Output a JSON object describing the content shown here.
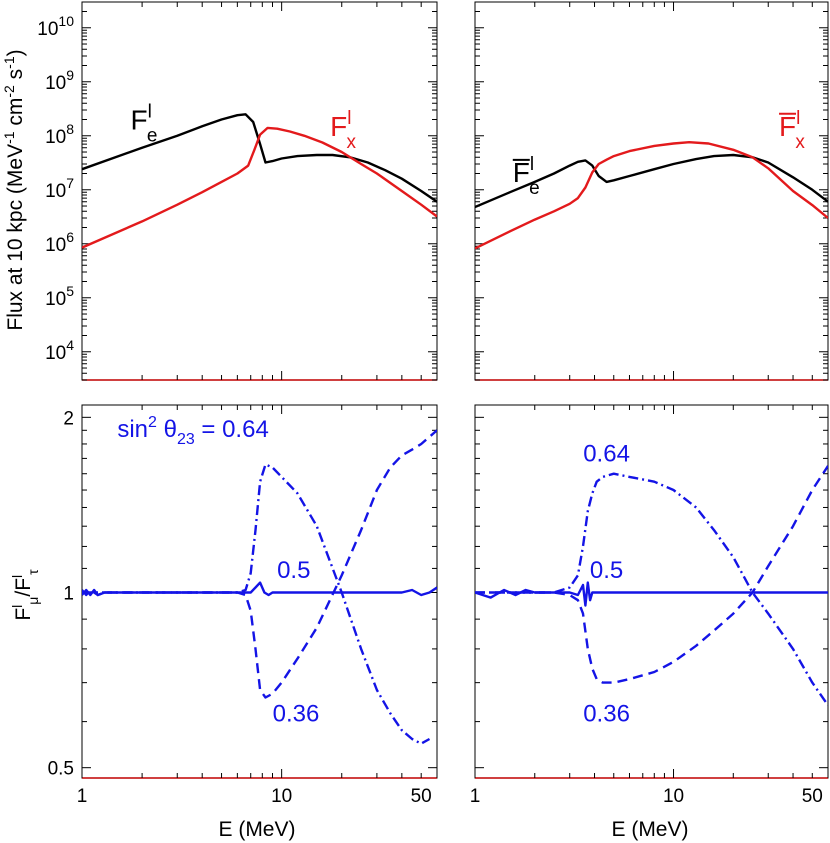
{
  "colors": {
    "black_curve": "#000000",
    "red_curve": "#e31a1c",
    "blue_curve": "#1414e6",
    "panel_bottom_edge": "#c00000"
  },
  "axis_text": {
    "x_label": "E (MeV)",
    "y_label_top": "Flux at 10 kpc (MeV",
    "y_label_top_sup1": "-1",
    "y_label_top_mid": " cm",
    "y_label_top_sup2": "-2",
    "y_label_top_mid2": " s",
    "y_label_top_sup3": "-1",
    "y_label_top_end": ")",
    "y_label_bottom_main1": "F",
    "y_label_bottom_sup1": "l",
    "y_label_bottom_sub1": "μ",
    "y_label_bottom_main2": "/F",
    "y_label_bottom_sup2": "l",
    "y_label_bottom_sub2": "τ"
  },
  "chart_data": [
    {
      "panel": "top-left",
      "type": "line",
      "log_x": true,
      "log_y": true,
      "xlim": [
        1,
        60
      ],
      "ylim": [
        3000,
        30000000000
      ],
      "x_ticks": [
        {
          "v": 1,
          "label": "1"
        },
        {
          "v": 10,
          "label": "10"
        },
        {
          "v": 50,
          "label": "50"
        }
      ],
      "y_ticks": [
        {
          "v": 10000,
          "base": "10",
          "exp": "4"
        },
        {
          "v": 100000,
          "base": "10",
          "exp": "5"
        },
        {
          "v": 1000000,
          "base": "10",
          "exp": "6"
        },
        {
          "v": 10000000,
          "base": "10",
          "exp": "7"
        },
        {
          "v": 100000000,
          "base": "10",
          "exp": "8"
        },
        {
          "v": 1000000000,
          "base": "10",
          "exp": "9"
        },
        {
          "v": 10000000000,
          "base": "10",
          "exp": "10"
        }
      ],
      "series": [
        {
          "color_key": "black_curve",
          "dash": "solid",
          "x": [
            1,
            2,
            3,
            4,
            5,
            6,
            6.6,
            7.2,
            7.8,
            8.3,
            9,
            10,
            12,
            15,
            18,
            22,
            27,
            33,
            40,
            50,
            60
          ],
          "y": [
            24000000,
            60000000,
            100000000,
            150000000,
            200000000,
            240000000,
            250000000,
            180000000,
            70000000,
            32000000,
            34000000,
            38000000,
            42000000,
            44000000,
            44000000,
            40000000,
            32000000,
            23000000,
            16000000,
            9500000,
            6000000
          ]
        },
        {
          "color_key": "red_curve",
          "dash": "solid",
          "x": [
            1,
            2,
            3,
            4,
            5,
            6,
            6.8,
            7.3,
            7.8,
            8.5,
            9.5,
            11,
            13,
            16,
            20,
            25,
            30,
            40,
            50,
            60
          ],
          "y": [
            850000,
            2600000,
            5300000,
            9000000,
            14000000,
            20000000,
            28000000,
            55000000,
            105000000,
            140000000,
            135000000,
            120000000,
            100000000,
            75000000,
            50000000,
            30000000,
            20000000,
            9500000,
            5300000,
            3200000
          ]
        }
      ],
      "annotations": [
        {
          "main": "F",
          "sup": "l",
          "sub": "e",
          "bar": false,
          "color_key": "black_curve",
          "ax": 1.75,
          "ay": 130000000
        },
        {
          "main": "F",
          "sup": "l",
          "sub": "x",
          "bar": false,
          "color_key": "red_curve",
          "ax": 17.5,
          "ay": 100000000
        }
      ]
    },
    {
      "panel": "top-right",
      "type": "line",
      "log_x": true,
      "log_y": true,
      "xlim": [
        1,
        60
      ],
      "ylim": [
        3000,
        30000000000
      ],
      "x_ticks": [
        {
          "v": 1,
          "label": "1"
        },
        {
          "v": 10,
          "label": "10"
        },
        {
          "v": 50,
          "label": "50"
        }
      ],
      "y_ticks": [
        {
          "v": 10000
        },
        {
          "v": 100000
        },
        {
          "v": 1000000
        },
        {
          "v": 10000000
        },
        {
          "v": 100000000
        },
        {
          "v": 1000000000
        },
        {
          "v": 10000000000
        }
      ],
      "series": [
        {
          "color_key": "black_curve",
          "dash": "solid",
          "x": [
            1,
            1.5,
            2,
            2.5,
            3,
            3.3,
            3.6,
            3.9,
            4.2,
            4.6,
            5,
            6,
            8,
            10,
            13,
            16,
            20,
            25,
            30,
            40,
            50,
            60
          ],
          "y": [
            4800000,
            9000000,
            14000000,
            20000000,
            28000000,
            33000000,
            35000000,
            28000000,
            18000000,
            14000000,
            15000000,
            18000000,
            24000000,
            30000000,
            37000000,
            42000000,
            44000000,
            40000000,
            32000000,
            17000000,
            10000000,
            6000000
          ]
        },
        {
          "color_key": "red_curve",
          "dash": "solid",
          "x": [
            1,
            1.5,
            2,
            2.5,
            3,
            3.3,
            3.6,
            3.9,
            4.2,
            4.6,
            5,
            6,
            8,
            10,
            12,
            15,
            20,
            25,
            30,
            40,
            50,
            60
          ],
          "y": [
            820000,
            1700000,
            2800000,
            4000000,
            5500000,
            7000000,
            11000000,
            21000000,
            30000000,
            36000000,
            42000000,
            52000000,
            65000000,
            72000000,
            76000000,
            72000000,
            55000000,
            40000000,
            25000000,
            9500000,
            5200000,
            3000000
          ]
        }
      ],
      "annotations": [
        {
          "main": "F",
          "sup": "l",
          "sub": "e",
          "bar": true,
          "color_key": "black_curve",
          "ax": 1.55,
          "ay": 14000000
        },
        {
          "main": "F",
          "sup": "l",
          "sub": "x",
          "bar": true,
          "color_key": "red_curve",
          "ax": 34,
          "ay": 100000000
        }
      ]
    },
    {
      "panel": "bottom-left",
      "type": "line",
      "log_x": true,
      "log_y": true,
      "xlim": [
        1,
        60
      ],
      "ylim": [
        0.48,
        2.1
      ],
      "x_ticks": [
        {
          "v": 1,
          "label": "1"
        },
        {
          "v": 10,
          "label": "10"
        },
        {
          "v": 50,
          "label": "50"
        }
      ],
      "y_ticks": [
        {
          "v": 0.5,
          "label": "0.5"
        },
        {
          "v": 1,
          "label": "1"
        },
        {
          "v": 2,
          "label": "2"
        }
      ],
      "series": [
        {
          "color_key": "blue_curve",
          "dash": "solid",
          "x": [
            1,
            1.05,
            1.1,
            1.15,
            1.2,
            1.3,
            1.5,
            2,
            3,
            4,
            5,
            6,
            7,
            7.4,
            7.8,
            8.2,
            8.6,
            9,
            10,
            12,
            15,
            18,
            20,
            25,
            30,
            35,
            40,
            45,
            50,
            55,
            60
          ],
          "y": [
            0.99,
            1.01,
            0.99,
            1.01,
            0.99,
            1.0,
            1.0,
            1.0,
            1.0,
            1.0,
            1.0,
            1.0,
            1.0,
            1.02,
            1.04,
            1.0,
            0.99,
            1.0,
            1.0,
            1.0,
            1.0,
            1.0,
            1.0,
            1.0,
            1.0,
            1.0,
            1.0,
            1.01,
            0.99,
            1.0,
            1.02
          ]
        },
        {
          "color_key": "blue_curve",
          "dash": "dashed",
          "x": [
            1,
            1.05,
            1.1,
            1.2,
            1.3,
            1.5,
            2,
            3,
            4,
            5,
            6,
            6.6,
            7,
            7.4,
            7.8,
            8.3,
            9,
            10,
            12,
            15,
            20,
            25,
            30,
            35,
            40,
            45,
            50,
            60
          ],
          "y": [
            1.01,
            0.99,
            1.01,
            0.99,
            1.0,
            1.0,
            1.0,
            1.0,
            1.0,
            1.0,
            1.0,
            0.99,
            0.93,
            0.8,
            0.68,
            0.66,
            0.67,
            0.7,
            0.77,
            0.87,
            1.07,
            1.28,
            1.5,
            1.64,
            1.72,
            1.76,
            1.8,
            1.9
          ]
        },
        {
          "color_key": "blue_curve",
          "dash": "dashdot",
          "x": [
            1,
            2,
            3,
            4,
            5,
            6,
            6.6,
            7,
            7.4,
            7.8,
            8.3,
            9,
            10,
            12,
            15,
            20,
            25,
            30,
            35,
            40,
            45,
            50,
            55
          ],
          "y": [
            1.0,
            1.0,
            1.0,
            1.0,
            1.0,
            1.0,
            1.01,
            1.08,
            1.28,
            1.55,
            1.66,
            1.64,
            1.58,
            1.48,
            1.3,
            1.0,
            0.8,
            0.68,
            0.62,
            0.58,
            0.56,
            0.55,
            0.56
          ]
        }
      ],
      "annotations": [
        {
          "text": "0.5",
          "ax": 11.5,
          "ay": 1.06
        },
        {
          "text": "0.36",
          "ax": 11.8,
          "ay": 0.6
        }
      ],
      "label_sin": {
        "pre": "sin",
        "sup": "2",
        "theta": " θ",
        "sub": "23",
        "post": " = 0.64",
        "ax": 3.6,
        "ay": 1.85
      }
    },
    {
      "panel": "bottom-right",
      "type": "line",
      "log_x": true,
      "log_y": true,
      "xlim": [
        1,
        60
      ],
      "ylim": [
        0.48,
        2.1
      ],
      "x_ticks": [
        {
          "v": 1,
          "label": "1"
        },
        {
          "v": 10,
          "label": "10"
        },
        {
          "v": 50,
          "label": "50"
        }
      ],
      "y_ticks": [
        {
          "v": 0.5
        },
        {
          "v": 1
        },
        {
          "v": 2
        }
      ],
      "series": [
        {
          "color_key": "blue_curve",
          "dash": "solid",
          "x": [
            1,
            1.2,
            1.4,
            1.6,
            1.8,
            2,
            2.5,
            3,
            3.3,
            3.5,
            3.6,
            3.7,
            3.8,
            3.9,
            4.0,
            4.2,
            4.5,
            5,
            6,
            8,
            10,
            15,
            20,
            30,
            40,
            50,
            60
          ],
          "y": [
            1.0,
            0.98,
            1.01,
            0.99,
            1.01,
            1.0,
            1.0,
            1.0,
            0.99,
            1.03,
            0.95,
            1.04,
            0.97,
            1.0,
            1.0,
            1.0,
            1.0,
            1.0,
            1.0,
            1.0,
            1.0,
            1.0,
            1.0,
            1.0,
            1.0,
            1.0,
            1.0
          ]
        },
        {
          "color_key": "blue_curve",
          "dash": "dashed",
          "x": [
            1,
            2,
            2.5,
            3,
            3.3,
            3.5,
            3.7,
            3.9,
            4.1,
            4.4,
            5,
            6,
            8,
            10,
            13,
            16,
            20,
            25,
            30,
            40,
            50,
            60
          ],
          "y": [
            1.0,
            1.0,
            1.0,
            0.99,
            0.97,
            0.92,
            0.8,
            0.74,
            0.71,
            0.7,
            0.7,
            0.71,
            0.73,
            0.76,
            0.81,
            0.86,
            0.92,
            1.0,
            1.11,
            1.3,
            1.5,
            1.65
          ]
        },
        {
          "color_key": "blue_curve",
          "dash": "dashdot",
          "x": [
            1,
            2,
            2.5,
            3,
            3.3,
            3.5,
            3.7,
            3.9,
            4.1,
            4.4,
            5,
            6,
            8,
            10,
            13,
            16,
            20,
            25,
            30,
            40,
            50,
            60
          ],
          "y": [
            1.0,
            1.0,
            1.0,
            1.02,
            1.07,
            1.2,
            1.38,
            1.48,
            1.55,
            1.58,
            1.6,
            1.58,
            1.55,
            1.5,
            1.4,
            1.28,
            1.15,
            1.0,
            0.92,
            0.8,
            0.7,
            0.64
          ]
        }
      ],
      "annotations": [
        {
          "text": "0.64",
          "ax": 4.6,
          "ay": 1.68
        },
        {
          "text": "0.5",
          "ax": 4.6,
          "ay": 1.06
        },
        {
          "text": "0.36",
          "ax": 4.6,
          "ay": 0.6
        }
      ]
    }
  ]
}
